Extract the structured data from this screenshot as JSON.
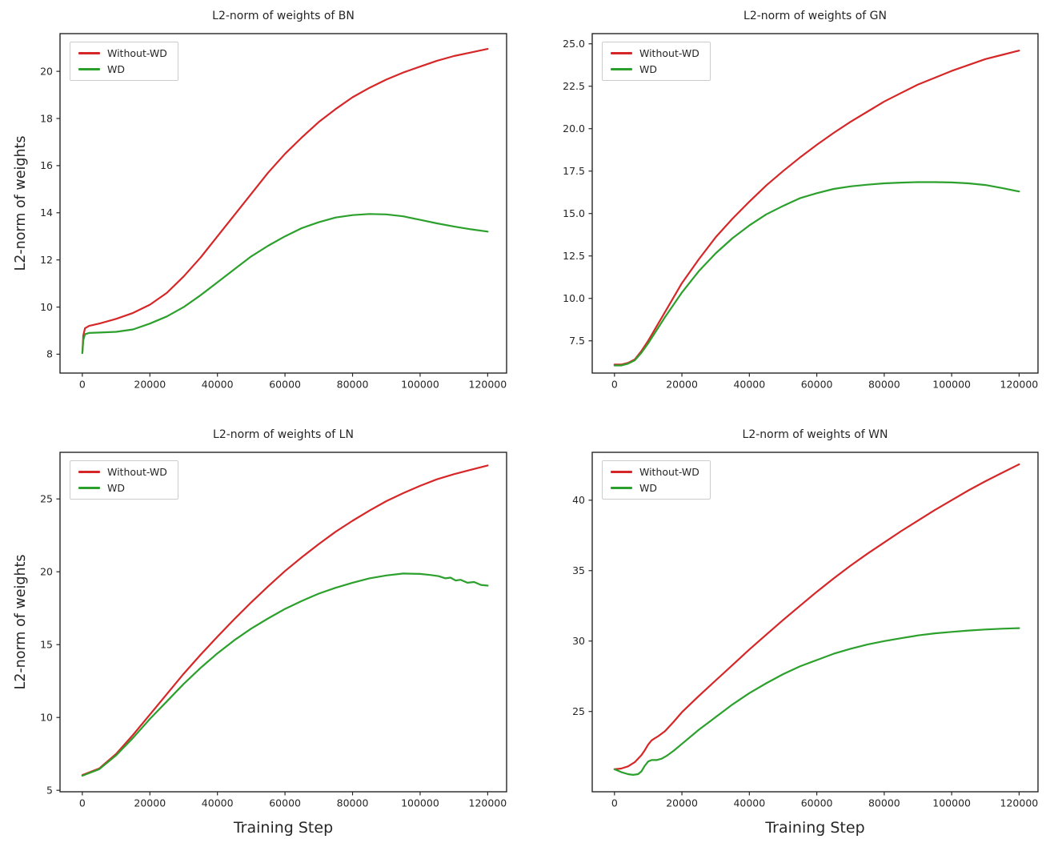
{
  "colors": {
    "without_wd": "#d62728",
    "wd": "#2ca02c",
    "axis": "#262626",
    "legend_border": "#cccccc",
    "background": "#ffffff"
  },
  "chart_data": [
    {
      "type": "line",
      "title": "L2-norm of weights of BN",
      "xlabel": "",
      "ylabel": "L2-norm of weights",
      "xlim": [
        -6600,
        125600
      ],
      "ylim": [
        7.2,
        21.6
      ],
      "xticks": [
        0,
        20000,
        40000,
        60000,
        80000,
        100000,
        120000
      ],
      "xtick_labels": [
        "0",
        "20000",
        "40000",
        "60000",
        "80000",
        "100000",
        "120000"
      ],
      "yticks": [
        8,
        10,
        12,
        14,
        16,
        18,
        20
      ],
      "ytick_labels": [
        "8",
        "10",
        "12",
        "14",
        "16",
        "18",
        "20"
      ],
      "grid": false,
      "legend_position": "upper left",
      "series": [
        {
          "name": "Without-WD",
          "color_key": "without_wd",
          "x": [
            0,
            300,
            800,
            2000,
            5000,
            10000,
            15000,
            20000,
            25000,
            30000,
            35000,
            40000,
            45000,
            50000,
            55000,
            60000,
            65000,
            70000,
            75000,
            80000,
            85000,
            90000,
            95000,
            100000,
            105000,
            110000,
            115000,
            120000
          ],
          "y": [
            8.05,
            8.8,
            9.1,
            9.2,
            9.3,
            9.5,
            9.75,
            10.1,
            10.6,
            11.3,
            12.1,
            13.0,
            13.9,
            14.8,
            15.7,
            16.5,
            17.2,
            17.85,
            18.4,
            18.9,
            19.3,
            19.65,
            19.95,
            20.2,
            20.45,
            20.65,
            20.8,
            20.95
          ]
        },
        {
          "name": "WD",
          "color_key": "wd",
          "x": [
            0,
            300,
            800,
            2000,
            5000,
            10000,
            15000,
            20000,
            25000,
            30000,
            35000,
            40000,
            45000,
            50000,
            55000,
            60000,
            65000,
            70000,
            75000,
            80000,
            85000,
            90000,
            95000,
            100000,
            105000,
            110000,
            115000,
            120000
          ],
          "y": [
            8.05,
            8.6,
            8.85,
            8.9,
            8.92,
            8.95,
            9.05,
            9.3,
            9.6,
            10.0,
            10.5,
            11.05,
            11.6,
            12.15,
            12.6,
            13.0,
            13.35,
            13.6,
            13.8,
            13.9,
            13.95,
            13.93,
            13.85,
            13.7,
            13.55,
            13.42,
            13.3,
            13.2
          ]
        }
      ]
    },
    {
      "type": "line",
      "title": "L2-norm of weights of GN",
      "xlabel": "",
      "ylabel": "",
      "xlim": [
        -6600,
        125600
      ],
      "ylim": [
        5.6,
        25.6
      ],
      "xticks": [
        0,
        20000,
        40000,
        60000,
        80000,
        100000,
        120000
      ],
      "xtick_labels": [
        "0",
        "20000",
        "40000",
        "60000",
        "80000",
        "100000",
        "120000"
      ],
      "yticks": [
        7.5,
        10,
        12.5,
        15,
        17.5,
        20,
        22.5,
        25
      ],
      "ytick_labels": [
        "7.5",
        "10.0",
        "12.5",
        "15.0",
        "17.5",
        "20.0",
        "22.5",
        "25.0"
      ],
      "grid": false,
      "legend_position": "upper left",
      "series": [
        {
          "name": "Without-WD",
          "color_key": "without_wd",
          "x": [
            0,
            2000,
            4000,
            6000,
            8000,
            10000,
            15000,
            20000,
            25000,
            30000,
            35000,
            40000,
            45000,
            50000,
            55000,
            60000,
            65000,
            70000,
            75000,
            80000,
            85000,
            90000,
            95000,
            100000,
            105000,
            110000,
            115000,
            120000
          ],
          "y": [
            6.1,
            6.1,
            6.2,
            6.4,
            6.9,
            7.5,
            9.2,
            10.9,
            12.3,
            13.6,
            14.7,
            15.7,
            16.65,
            17.5,
            18.3,
            19.05,
            19.75,
            20.4,
            21.0,
            21.6,
            22.1,
            22.6,
            23.0,
            23.4,
            23.75,
            24.1,
            24.35,
            24.6
          ]
        },
        {
          "name": "WD",
          "color_key": "wd",
          "x": [
            0,
            2000,
            4000,
            6000,
            8000,
            10000,
            15000,
            20000,
            25000,
            30000,
            35000,
            40000,
            45000,
            50000,
            55000,
            60000,
            65000,
            70000,
            75000,
            80000,
            85000,
            90000,
            95000,
            100000,
            105000,
            110000,
            115000,
            120000
          ],
          "y": [
            6.05,
            6.05,
            6.15,
            6.35,
            6.8,
            7.35,
            8.9,
            10.35,
            11.6,
            12.65,
            13.55,
            14.3,
            14.95,
            15.45,
            15.9,
            16.2,
            16.45,
            16.6,
            16.7,
            16.78,
            16.82,
            16.85,
            16.85,
            16.83,
            16.78,
            16.68,
            16.5,
            16.3
          ]
        }
      ]
    },
    {
      "type": "line",
      "title": "L2-norm of weights of LN",
      "xlabel": "Training Step",
      "ylabel": "L2-norm of weights",
      "xlim": [
        -6600,
        125600
      ],
      "ylim": [
        4.9,
        28.2
      ],
      "xticks": [
        0,
        20000,
        40000,
        60000,
        80000,
        100000,
        120000
      ],
      "xtick_labels": [
        "0",
        "20000",
        "40000",
        "60000",
        "80000",
        "100000",
        "120000"
      ],
      "yticks": [
        5,
        10,
        15,
        20,
        25
      ],
      "ytick_labels": [
        "5",
        "10",
        "15",
        "20",
        "25"
      ],
      "grid": false,
      "legend_position": "upper left",
      "series": [
        {
          "name": "Without-WD",
          "color_key": "without_wd",
          "x": [
            0,
            5000,
            10000,
            15000,
            20000,
            25000,
            30000,
            35000,
            40000,
            45000,
            50000,
            55000,
            60000,
            65000,
            70000,
            75000,
            80000,
            85000,
            90000,
            95000,
            100000,
            105000,
            110000,
            115000,
            120000
          ],
          "y": [
            6.05,
            6.5,
            7.5,
            8.8,
            10.2,
            11.6,
            13.0,
            14.3,
            15.55,
            16.75,
            17.9,
            19.0,
            20.05,
            21.0,
            21.9,
            22.75,
            23.5,
            24.2,
            24.85,
            25.4,
            25.9,
            26.35,
            26.7,
            27.0,
            27.3
          ]
        },
        {
          "name": "WD",
          "color_key": "wd",
          "x": [
            0,
            5000,
            10000,
            15000,
            20000,
            25000,
            30000,
            35000,
            40000,
            45000,
            50000,
            55000,
            60000,
            65000,
            70000,
            75000,
            80000,
            85000,
            90000,
            95000,
            100000,
            103000,
            105500,
            107500,
            109000,
            110500,
            112000,
            114000,
            116000,
            118000,
            120000
          ],
          "y": [
            6.0,
            6.45,
            7.4,
            8.6,
            9.9,
            11.1,
            12.3,
            13.4,
            14.4,
            15.3,
            16.1,
            16.8,
            17.45,
            18.0,
            18.5,
            18.9,
            19.25,
            19.55,
            19.75,
            19.88,
            19.85,
            19.78,
            19.7,
            19.55,
            19.6,
            19.4,
            19.45,
            19.25,
            19.3,
            19.1,
            19.05
          ]
        }
      ]
    },
    {
      "type": "line",
      "title": "L2-norm of weights of WN",
      "xlabel": "Training Step",
      "ylabel": "",
      "xlim": [
        -6600,
        125600
      ],
      "ylim": [
        19.3,
        43.4
      ],
      "xticks": [
        0,
        20000,
        40000,
        60000,
        80000,
        100000,
        120000
      ],
      "xtick_labels": [
        "0",
        "20000",
        "40000",
        "60000",
        "80000",
        "100000",
        "120000"
      ],
      "yticks": [
        25,
        30,
        35,
        40
      ],
      "ytick_labels": [
        "25",
        "30",
        "35",
        "40"
      ],
      "grid": false,
      "legend_position": "upper left",
      "series": [
        {
          "name": "Without-WD",
          "color_key": "without_wd",
          "x": [
            0,
            2000,
            4000,
            6000,
            8000,
            9000,
            10000,
            11000,
            12000,
            13000,
            15000,
            17500,
            20000,
            25000,
            30000,
            35000,
            40000,
            45000,
            50000,
            55000,
            60000,
            65000,
            70000,
            75000,
            80000,
            85000,
            90000,
            95000,
            100000,
            105000,
            110000,
            115000,
            120000
          ],
          "y": [
            20.9,
            20.95,
            21.1,
            21.4,
            21.9,
            22.25,
            22.65,
            22.95,
            23.1,
            23.25,
            23.6,
            24.25,
            24.95,
            26.1,
            27.2,
            28.3,
            29.4,
            30.45,
            31.5,
            32.5,
            33.5,
            34.45,
            35.35,
            36.2,
            37.0,
            37.8,
            38.55,
            39.3,
            40.0,
            40.7,
            41.35,
            41.95,
            42.55
          ]
        },
        {
          "name": "WD",
          "color_key": "wd",
          "x": [
            0,
            2000,
            4000,
            5500,
            7000,
            8000,
            9000,
            10000,
            11000,
            12500,
            14000,
            15500,
            17500,
            20000,
            25000,
            30000,
            35000,
            40000,
            45000,
            50000,
            55000,
            60000,
            65000,
            70000,
            75000,
            80000,
            85000,
            90000,
            95000,
            100000,
            105000,
            110000,
            115000,
            120000
          ],
          "y": [
            20.9,
            20.7,
            20.55,
            20.5,
            20.55,
            20.75,
            21.15,
            21.45,
            21.55,
            21.55,
            21.65,
            21.85,
            22.2,
            22.7,
            23.7,
            24.6,
            25.5,
            26.3,
            27.0,
            27.65,
            28.2,
            28.65,
            29.1,
            29.45,
            29.75,
            30.0,
            30.2,
            30.4,
            30.55,
            30.65,
            30.75,
            30.82,
            30.88,
            30.92
          ]
        }
      ]
    }
  ]
}
